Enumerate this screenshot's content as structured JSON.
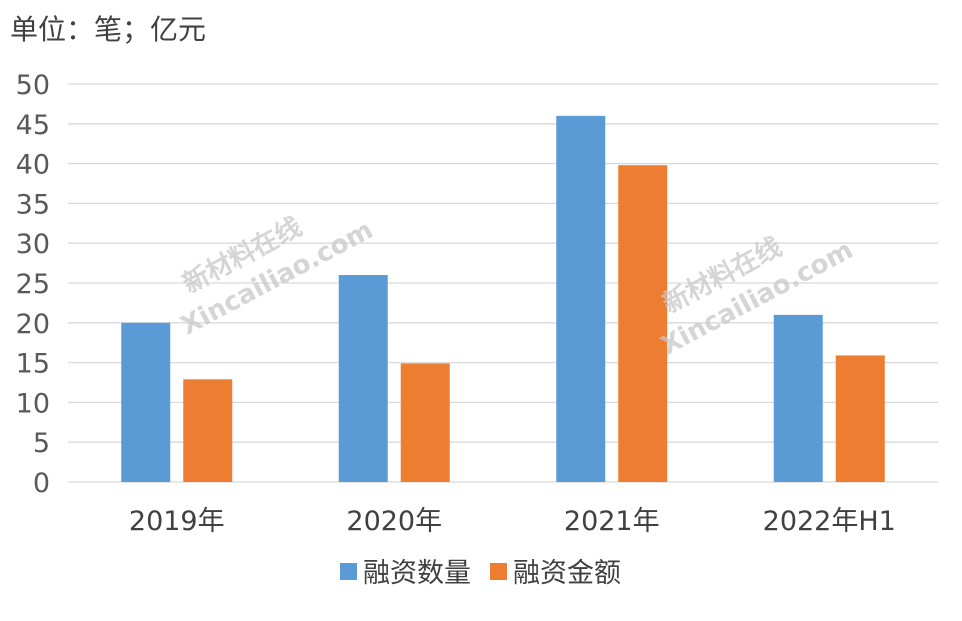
{
  "unit_label": "单位：笔；亿元",
  "watermark": {
    "line1": "新材料在线",
    "line2": "Xincailiao.com"
  },
  "colors": {
    "series1": "#5B9BD5",
    "series2": "#ED7D31",
    "grid": "#d9d9d9"
  },
  "chart_data": {
    "type": "bar",
    "categories": [
      "2019年",
      "2020年",
      "2021年",
      "2022年H1"
    ],
    "series": [
      {
        "name": "融资数量",
        "values": [
          20,
          26,
          46,
          21
        ]
      },
      {
        "name": "融资金额",
        "values": [
          12.9,
          14.9,
          39.8,
          15.9
        ]
      }
    ],
    "ylim": [
      0,
      50
    ],
    "yticks": [
      0,
      5,
      10,
      15,
      20,
      25,
      30,
      35,
      40,
      45,
      50
    ],
    "grid": true,
    "legend": "bottom"
  }
}
